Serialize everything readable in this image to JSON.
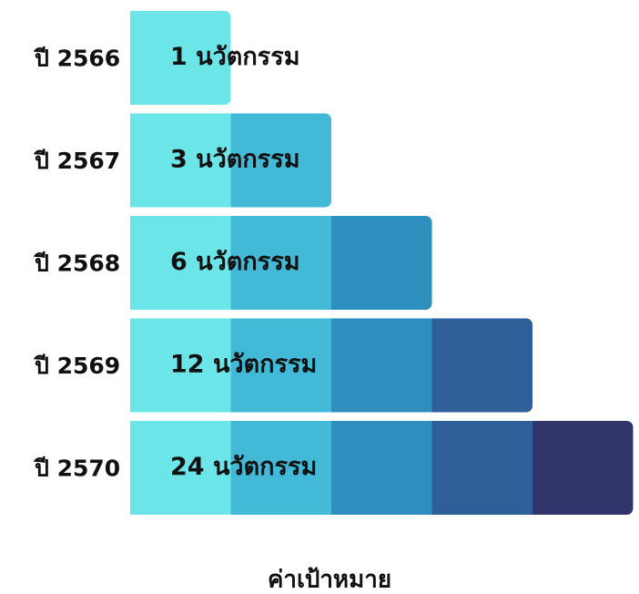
{
  "rows": [
    {
      "year": "ปี 2566",
      "label": "1 นวัตกรรม"
    },
    {
      "year": "ปี 2567",
      "label": "3 นวัตกรรม"
    },
    {
      "year": "ปี 2568",
      "label": "6 นวัตกรรม"
    },
    {
      "year": "ปี 2569",
      "label": "12 นวัตกรรม"
    },
    {
      "year": "ปี 2570",
      "label": "24 นวัตกรรม"
    }
  ],
  "footer": "ค่าเป้าหมาย"
}
